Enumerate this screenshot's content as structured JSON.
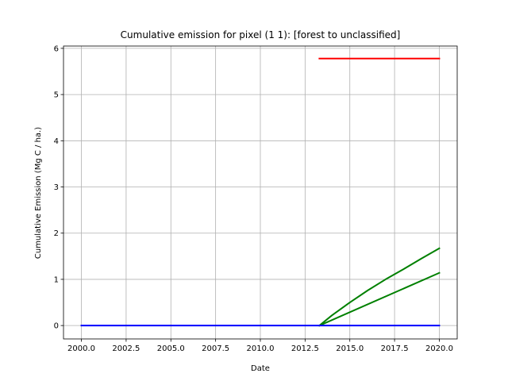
{
  "chart_data": {
    "type": "line",
    "title": "Cumulative emission for pixel (1 1): [forest to unclassified]",
    "xlabel": "Date",
    "ylabel": "Cumulative Emission (Mg C / ha.)",
    "xlim": [
      1999.0,
      2021.0
    ],
    "ylim": [
      -0.29,
      6.05
    ],
    "grid": true,
    "x_ticks": [
      2000.0,
      2002.5,
      2005.0,
      2007.5,
      2010.0,
      2012.5,
      2015.0,
      2017.5,
      2020.0
    ],
    "x_tick_labels": [
      "2000.0",
      "2002.5",
      "2005.0",
      "2007.5",
      "2010.0",
      "2012.5",
      "2015.0",
      "2017.5",
      "2020.0"
    ],
    "y_ticks": [
      0,
      1,
      2,
      3,
      4,
      5,
      6
    ],
    "y_tick_labels": [
      "0",
      "1",
      "2",
      "3",
      "4",
      "5",
      "6"
    ],
    "series": [
      {
        "color": "#ff0000",
        "x": [
          2013.3,
          2020.0
        ],
        "y": [
          5.78,
          5.78
        ]
      },
      {
        "color": "#008000",
        "x": [
          2013.3,
          2014.0,
          2015.0,
          2016.0,
          2017.0,
          2018.0,
          2019.0,
          2020.0
        ],
        "y": [
          0.0,
          0.22,
          0.5,
          0.76,
          1.0,
          1.22,
          1.45,
          1.67
        ]
      },
      {
        "color": "#008000",
        "x": [
          2013.3,
          2020.0
        ],
        "y": [
          0.0,
          1.14
        ]
      },
      {
        "color": "#0000ff",
        "x": [
          2000.0,
          2020.0
        ],
        "y": [
          0.0,
          0.0
        ]
      }
    ]
  }
}
